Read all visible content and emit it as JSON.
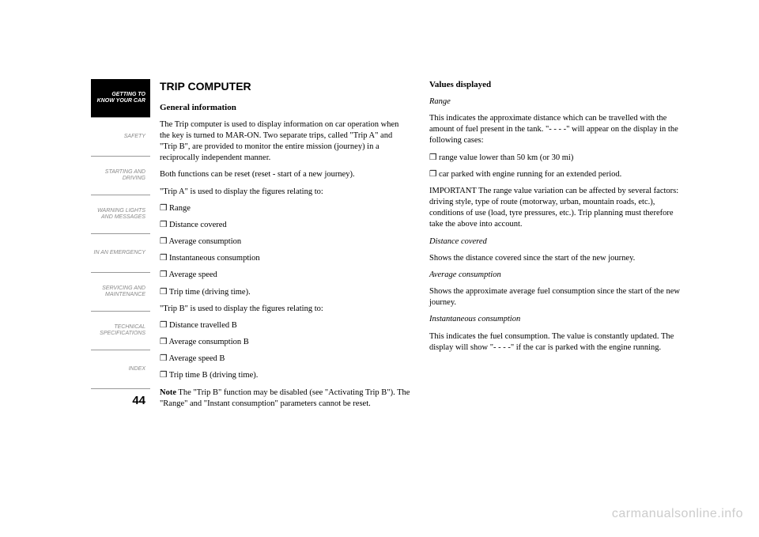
{
  "sidebar": {
    "items": [
      {
        "label": "GETTING TO\nKNOW YOUR CAR",
        "active": true
      },
      {
        "label": "SAFETY",
        "active": false
      },
      {
        "label": "STARTING AND\nDRIVING",
        "active": false
      },
      {
        "label": "WARNING LIGHTS\nAND MESSAGES",
        "active": false
      },
      {
        "label": "IN AN EMERGENCY",
        "active": false
      },
      {
        "label": "SERVICING AND\nMAINTENANCE",
        "active": false
      },
      {
        "label": "TECHNICAL\nSPECIFICATIONS",
        "active": false
      },
      {
        "label": "INDEX",
        "active": false
      }
    ],
    "page_number": "44"
  },
  "left": {
    "title": "TRIP COMPUTER",
    "subtitle": "General information",
    "p1": "The Trip computer is used to display information on car operation when the key is turned to MAR-ON. Two separate trips, called \"Trip A\" and \"Trip B\", are provided to monitor the entire mission (journey) in a reciprocally independent manner.",
    "p2": "Both functions can be reset (reset - start of a new journey).",
    "p3": "\"Trip A\" is used to display the figures relating to:",
    "bullets_a": [
      "Range",
      "Distance covered",
      "Average consumption",
      "Instantaneous consumption",
      "Average speed",
      "Trip time (driving time)."
    ],
    "p4": "\"Trip B\" is used to display the figures relating to:",
    "bullets_b": [
      "Distance travelled B",
      "Average consumption B",
      "Average speed B",
      "Trip time B (driving time)."
    ],
    "note_label": "Note",
    "note_text": " The \"Trip B\" function may be disabled (see \"Activating Trip B\"). The \"Range\" and \"Instant consumption\" parameters cannot be reset."
  },
  "right": {
    "subtitle": "Values displayed",
    "range_h": "Range",
    "range_p": "This indicates the approximate distance which can be travelled with the amount of fuel present in the tank. \"- - - -\" will appear on the display in the following cases:",
    "range_bullets": [
      "range value lower than 50 km (or 30 mi)",
      "car parked with engine running for an extended period."
    ],
    "important": "IMPORTANT The range value variation can be affected by several factors: driving style, type of route (motorway, urban, mountain roads, etc.), conditions of use (load, tyre pressures, etc.). Trip planning must therefore take the above into account.",
    "dist_h": "Distance covered",
    "dist_p": "Shows the distance covered since the start of the new journey.",
    "avg_h": "Average consumption",
    "avg_p": "Shows the approximate average fuel consumption since the start of the new journey.",
    "inst_h": "Instantaneous consumption",
    "inst_p": "This indicates the fuel consumption. The value is constantly updated. The display will show \"- - - -\" if the car is parked with the engine running."
  },
  "watermark": "carmanualsonline.info"
}
